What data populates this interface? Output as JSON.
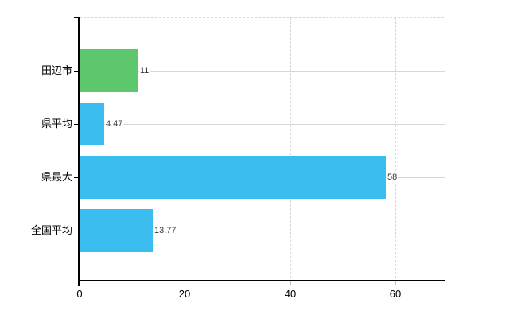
{
  "chart_data": {
    "type": "bar",
    "orientation": "horizontal",
    "title": "",
    "xlabel": "",
    "ylabel": "",
    "categories": [
      "田辺市",
      "県平均",
      "県最大",
      "全国平均"
    ],
    "values": [
      11,
      4.47,
      58,
      13.77
    ],
    "value_labels": [
      "11",
      "4.47",
      "58",
      "13.77"
    ],
    "bar_colors": [
      "#5cc76c",
      "#3bbdf0",
      "#3bbdf0",
      "#3bbdf0"
    ],
    "xlim": [
      0,
      69.5
    ],
    "x_ticks": [
      0,
      20,
      40,
      60
    ],
    "x_tick_labels": [
      "0",
      "20",
      "40",
      "60"
    ],
    "grid": true,
    "legend": false,
    "colors": {
      "axis": "#000000",
      "gridline": "#d8d8d8",
      "row_gridline": "#d6d6d6",
      "value_label": "#3a3a3a",
      "tick_label": "#000000",
      "background": "#ffffff"
    }
  }
}
